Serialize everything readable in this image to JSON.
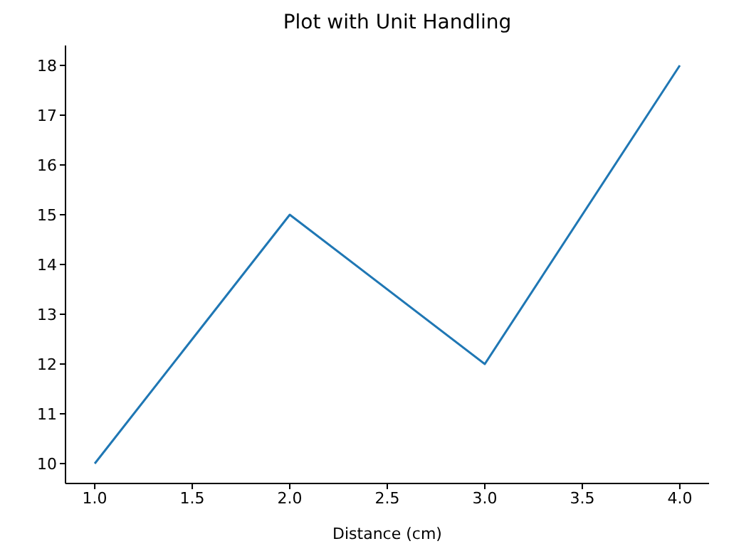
{
  "chart_data": {
    "type": "line",
    "title": "Plot with Unit Handling",
    "xlabel": "Distance (cm)",
    "x": [
      1,
      2,
      3,
      4
    ],
    "series": [
      {
        "color": "#1f77b4",
        "values": [
          10,
          15,
          12,
          18
        ]
      }
    ],
    "xlim": [
      0.85,
      4.15
    ],
    "xticks": [
      {
        "value": 1,
        "label": "1.0"
      },
      {
        "value": 1.5,
        "label": "1.5"
      },
      {
        "value": 2,
        "label": "2.0"
      },
      {
        "value": 2.5,
        "label": "2.5"
      },
      {
        "value": 3,
        "label": "3.0"
      },
      {
        "value": 3.5,
        "label": "3.5"
      },
      {
        "value": 4,
        "label": "4.0"
      }
    ],
    "ylim": [
      9.6,
      18.4
    ],
    "yticks": [
      10,
      11,
      12,
      13,
      14,
      15,
      16,
      17,
      18
    ],
    "grid": false,
    "legend": false,
    "marker": "none",
    "line_style": "solid"
  }
}
